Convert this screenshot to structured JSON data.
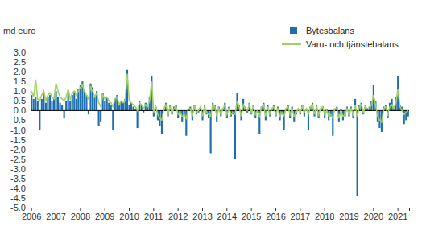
{
  "chart_data": {
    "type": "bar",
    "y_label": "md euro",
    "categories": [
      "2006",
      null,
      null,
      null,
      null,
      null,
      null,
      null,
      null,
      null,
      null,
      null,
      "2007",
      null,
      null,
      null,
      null,
      null,
      null,
      null,
      null,
      null,
      null,
      null,
      "2008",
      null,
      null,
      null,
      null,
      null,
      null,
      null,
      null,
      null,
      null,
      null,
      "2009",
      null,
      null,
      null,
      null,
      null,
      null,
      null,
      null,
      null,
      null,
      null,
      "2010",
      null,
      null,
      null,
      null,
      null,
      null,
      null,
      null,
      null,
      null,
      null,
      "2011",
      null,
      null,
      null,
      null,
      null,
      null,
      null,
      null,
      null,
      null,
      null,
      "2012",
      null,
      null,
      null,
      null,
      null,
      null,
      null,
      null,
      null,
      null,
      null,
      "2013",
      null,
      null,
      null,
      null,
      null,
      null,
      null,
      null,
      null,
      null,
      null,
      "2014",
      null,
      null,
      null,
      null,
      null,
      null,
      null,
      null,
      null,
      null,
      null,
      "2015",
      null,
      null,
      null,
      null,
      null,
      null,
      null,
      null,
      null,
      null,
      null,
      "2016",
      null,
      null,
      null,
      null,
      null,
      null,
      null,
      null,
      null,
      null,
      null,
      "2017",
      null,
      null,
      null,
      null,
      null,
      null,
      null,
      null,
      null,
      null,
      null,
      "2018",
      null,
      null,
      null,
      null,
      null,
      null,
      null,
      null,
      null,
      null,
      null,
      "2019",
      null,
      null,
      null,
      null,
      null,
      null,
      null,
      null,
      null,
      null,
      null,
      "2020",
      null,
      null,
      null,
      null,
      null,
      null,
      null,
      null,
      null,
      null,
      null,
      "2021",
      null,
      null,
      null,
      null,
      null
    ],
    "series": [
      {
        "name": "Bytesbalans",
        "type": "bar",
        "color": "#1f6eae",
        "values": [
          0.8,
          0.6,
          0.7,
          0.5,
          -1.0,
          0.6,
          0.9,
          0.4,
          0.7,
          0.8,
          0.5,
          0.6,
          1.0,
          0.7,
          0.4,
          0.3,
          -0.4,
          0.5,
          0.9,
          0.5,
          0.8,
          1.0,
          0.6,
          1.1,
          1.3,
          1.5,
          1.0,
          0.8,
          -0.2,
          1.4,
          1.2,
          0.7,
          1.0,
          -0.8,
          -0.6,
          0.9,
          0.5,
          0.7,
          0.4,
          0.3,
          -1.0,
          0.6,
          0.8,
          0.3,
          0.5,
          0.4,
          0.6,
          2.1,
          0.3,
          0.4,
          0.2,
          0.1,
          -0.9,
          0.5,
          0.3,
          -0.1,
          0.4,
          0.2,
          0.7,
          1.8,
          -0.3,
          0.2,
          -0.5,
          -0.8,
          -1.2,
          0.1,
          0.4,
          -0.3,
          0.3,
          -0.2,
          0.2,
          0.3,
          -0.4,
          -0.2,
          -0.6,
          -0.3,
          -1.3,
          0.1,
          0.2,
          -0.5,
          0.3,
          -0.2,
          -0.1,
          0.2,
          -0.5,
          0.3,
          -0.2,
          -0.4,
          -2.2,
          0.4,
          0.3,
          -0.6,
          0.2,
          -0.3,
          0.1,
          0.4,
          -0.4,
          0.2,
          -0.3,
          -0.2,
          -2.5,
          0.9,
          0.3,
          -0.5,
          0.6,
          0.2,
          -0.1,
          0.4,
          -0.2,
          0.3,
          -0.4,
          -0.1,
          -1.2,
          0.2,
          0.4,
          -0.5,
          0.3,
          -0.3,
          0.1,
          0.3,
          -0.3,
          0.2,
          -0.5,
          -0.2,
          -1.0,
          0.1,
          0.3,
          -0.4,
          0.2,
          -0.6,
          -0.2,
          0.1,
          -0.2,
          0.3,
          -0.3,
          0.1,
          -1.0,
          0.2,
          0.4,
          -0.3,
          0.3,
          -0.4,
          0.1,
          0.2,
          -0.4,
          0.1,
          -0.5,
          -0.3,
          -1.3,
          0.1,
          0.2,
          -0.6,
          0.1,
          -0.5,
          -0.3,
          0.2,
          -0.3,
          0.2,
          -0.4,
          0.6,
          -4.4,
          0.3,
          0.4,
          -0.2,
          0.3,
          0.1,
          0.2,
          0.5,
          1.3,
          0.5,
          -0.6,
          -0.9,
          -1.1,
          0.2,
          0.3,
          -0.4,
          0.4,
          0.6,
          0.2,
          0.7,
          1.8,
          0.3,
          0.2,
          -0.7,
          -0.5,
          -0.3
        ]
      },
      {
        "name": "Varu- och tjänstebalans",
        "type": "line",
        "color": "#9fd163",
        "values": [
          1.0,
          0.7,
          1.6,
          0.6,
          0.5,
          0.8,
          1.0,
          0.5,
          0.8,
          0.9,
          0.7,
          0.6,
          1.4,
          1.0,
          0.7,
          0.6,
          0.5,
          0.7,
          1.1,
          0.6,
          0.9,
          1.0,
          0.8,
          1.0,
          1.2,
          1.3,
          1.0,
          0.8,
          0.6,
          1.2,
          1.0,
          0.7,
          0.9,
          0.4,
          0.2,
          0.8,
          0.6,
          0.7,
          0.5,
          0.4,
          0.2,
          0.6,
          0.7,
          0.3,
          0.5,
          0.4,
          0.5,
          1.9,
          0.5,
          0.4,
          0.3,
          0.2,
          0.0,
          0.4,
          0.3,
          0.1,
          0.3,
          0.2,
          0.5,
          1.5,
          -0.1,
          0.2,
          -0.2,
          -0.4,
          -0.5,
          0.1,
          0.3,
          -0.2,
          0.2,
          -0.1,
          0.1,
          0.2,
          -0.2,
          -0.1,
          -0.3,
          -0.2,
          -0.4,
          0.1,
          0.1,
          -0.3,
          0.2,
          -0.1,
          0.0,
          0.2,
          -0.3,
          0.2,
          -0.1,
          -0.2,
          -0.3,
          0.3,
          0.2,
          -0.3,
          0.1,
          -0.2,
          0.1,
          0.3,
          -0.2,
          0.1,
          -0.2,
          -0.1,
          -0.2,
          0.5,
          0.2,
          -0.3,
          0.3,
          0.1,
          0.0,
          0.3,
          -0.1,
          0.2,
          -0.2,
          0.0,
          -0.3,
          0.2,
          0.3,
          -0.3,
          0.2,
          -0.2,
          0.1,
          0.2,
          -0.2,
          0.1,
          -0.3,
          -0.1,
          -0.3,
          0.1,
          0.2,
          -0.2,
          0.1,
          -0.3,
          -0.1,
          0.1,
          -0.1,
          0.2,
          -0.1,
          0.1,
          -0.2,
          0.2,
          0.3,
          -0.2,
          0.2,
          -0.2,
          0.1,
          0.2,
          -0.2,
          0.0,
          -0.3,
          -0.2,
          -0.4,
          0.1,
          0.1,
          -0.4,
          0.0,
          -0.3,
          -0.2,
          0.1,
          -0.2,
          0.1,
          -0.2,
          0.3,
          -0.3,
          0.2,
          0.3,
          -0.1,
          0.2,
          0.1,
          0.1,
          0.3,
          0.8,
          0.3,
          -0.3,
          -0.5,
          -0.6,
          0.1,
          0.2,
          -0.2,
          0.2,
          0.3,
          0.1,
          0.4,
          1.1,
          0.2,
          0.0,
          -0.2,
          -0.1,
          0.0
        ]
      }
    ],
    "ylim": [
      -5,
      3
    ],
    "yticks": [
      {
        "value": -5,
        "label": "-5.0"
      },
      -4.5,
      {
        "value": -4,
        "label": "-4.0"
      },
      -3.5,
      {
        "value": -3,
        "label": "-3.0"
      },
      -2.5,
      {
        "value": -2,
        "label": "-2.0"
      },
      -1.5,
      {
        "value": -1,
        "label": "-1.0"
      },
      -0.5,
      {
        "value": 0,
        "label": "0.0"
      },
      0.5,
      {
        "value": 1,
        "label": "1.0"
      },
      1.5,
      {
        "value": 2,
        "label": "2.0"
      },
      2.5,
      {
        "value": 3,
        "label": "3.0"
      }
    ],
    "grid": false,
    "legend": "upper right"
  }
}
